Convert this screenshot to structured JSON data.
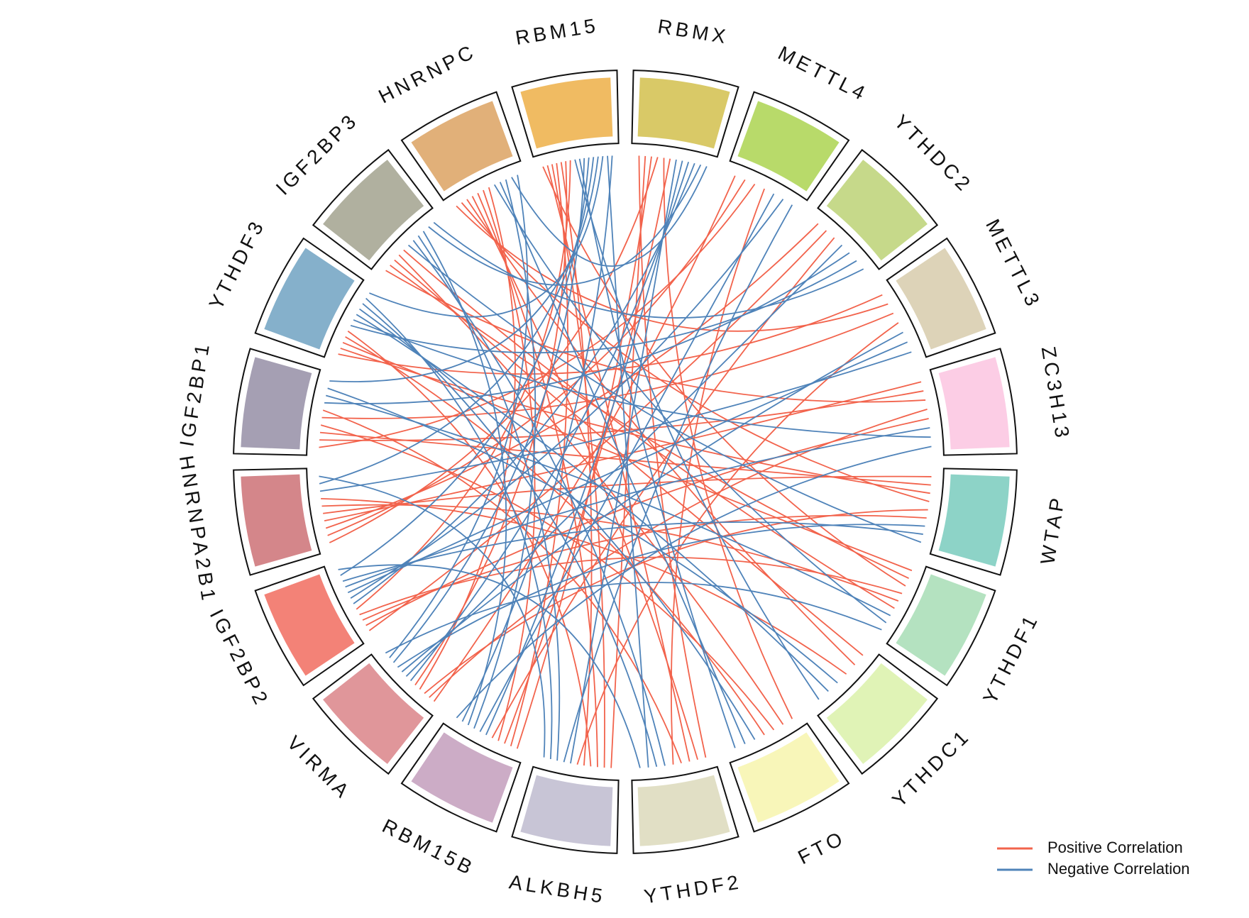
{
  "chart_data": {
    "type": "chord",
    "categories": [
      "RBMX",
      "METTL4",
      "YTHDC2",
      "METTL3",
      "ZC3H13",
      "WTAP",
      "YTHDF1",
      "YTHDC1",
      "FTO",
      "YTHDF2",
      "ALKBH5",
      "RBM15B",
      "VIRMA",
      "IGF2BP2",
      "HNRNPA2B1",
      "IGF2BP1",
      "YTHDF3",
      "IGF2BP3",
      "HNRNPC",
      "RBM15"
    ],
    "colors": [
      "#d9c967",
      "#b8da6a",
      "#c6d98a",
      "#ddd3b8",
      "#fccde5",
      "#8dd3c7",
      "#b4e2c0",
      "#e0f3b6",
      "#f8f6b9",
      "#e1dfc5",
      "#c8c5d6",
      "#ccacc6",
      "#e0969a",
      "#f38277",
      "#d4868a",
      "#a59fb3",
      "#85b0cb",
      "#b0b09f",
      "#e1b079",
      "#f0bb62"
    ],
    "series": [
      {
        "name": "Positive Correlation",
        "color": "#f2634c",
        "links": [
          [
            0,
            9
          ],
          [
            0,
            10
          ],
          [
            0,
            11
          ],
          [
            0,
            14
          ],
          [
            0,
            8
          ],
          [
            1,
            12
          ],
          [
            1,
            14
          ],
          [
            1,
            15
          ],
          [
            2,
            14
          ],
          [
            2,
            13
          ],
          [
            3,
            16
          ],
          [
            3,
            18
          ],
          [
            4,
            14
          ],
          [
            4,
            15
          ],
          [
            4,
            17
          ],
          [
            5,
            14
          ],
          [
            5,
            15
          ],
          [
            5,
            16
          ],
          [
            5,
            18
          ],
          [
            6,
            16
          ],
          [
            6,
            17
          ],
          [
            6,
            19
          ],
          [
            7,
            17
          ],
          [
            7,
            18
          ],
          [
            8,
            17
          ],
          [
            8,
            15
          ],
          [
            9,
            18
          ],
          [
            9,
            19
          ],
          [
            10,
            19
          ],
          [
            10,
            18
          ],
          [
            11,
            19
          ],
          [
            11,
            0
          ],
          [
            12,
            4
          ],
          [
            12,
            5
          ],
          [
            13,
            4
          ],
          [
            13,
            5
          ],
          [
            13,
            6
          ],
          [
            14,
            6
          ],
          [
            14,
            7
          ],
          [
            15,
            3
          ],
          [
            15,
            9
          ],
          [
            16,
            8
          ],
          [
            16,
            10
          ],
          [
            17,
            6
          ],
          [
            18,
            11
          ],
          [
            18,
            12
          ],
          [
            19,
            10
          ],
          [
            19,
            12
          ],
          [
            19,
            13
          ],
          [
            2,
            11
          ],
          [
            3,
            10
          ],
          [
            1,
            9
          ]
        ]
      },
      {
        "name": "Negative Correlation",
        "color": "#4f83b9",
        "links": [
          [
            0,
            10
          ],
          [
            0,
            11
          ],
          [
            0,
            12
          ],
          [
            0,
            13
          ],
          [
            1,
            11
          ],
          [
            1,
            13
          ],
          [
            1,
            10
          ],
          [
            2,
            12
          ],
          [
            2,
            15
          ],
          [
            2,
            16
          ],
          [
            3,
            12
          ],
          [
            3,
            13
          ],
          [
            3,
            14
          ],
          [
            4,
            13
          ],
          [
            4,
            16
          ],
          [
            5,
            12
          ],
          [
            5,
            13
          ],
          [
            5,
            17
          ],
          [
            6,
            15
          ],
          [
            6,
            18
          ],
          [
            7,
            15
          ],
          [
            7,
            16
          ],
          [
            7,
            19
          ],
          [
            8,
            16
          ],
          [
            8,
            18
          ],
          [
            8,
            19
          ],
          [
            9,
            17
          ],
          [
            9,
            16
          ],
          [
            10,
            17
          ],
          [
            10,
            16
          ],
          [
            11,
            18
          ],
          [
            11,
            17
          ],
          [
            12,
            19
          ],
          [
            13,
            19
          ],
          [
            14,
            19
          ],
          [
            15,
            19
          ],
          [
            16,
            19
          ],
          [
            17,
            0
          ],
          [
            18,
            0
          ],
          [
            19,
            9
          ],
          [
            19,
            11
          ],
          [
            10,
            14
          ],
          [
            9,
            13
          ],
          [
            12,
            18
          ],
          [
            17,
            2
          ],
          [
            4,
            11
          ],
          [
            6,
            12
          ]
        ]
      }
    ]
  }
}
